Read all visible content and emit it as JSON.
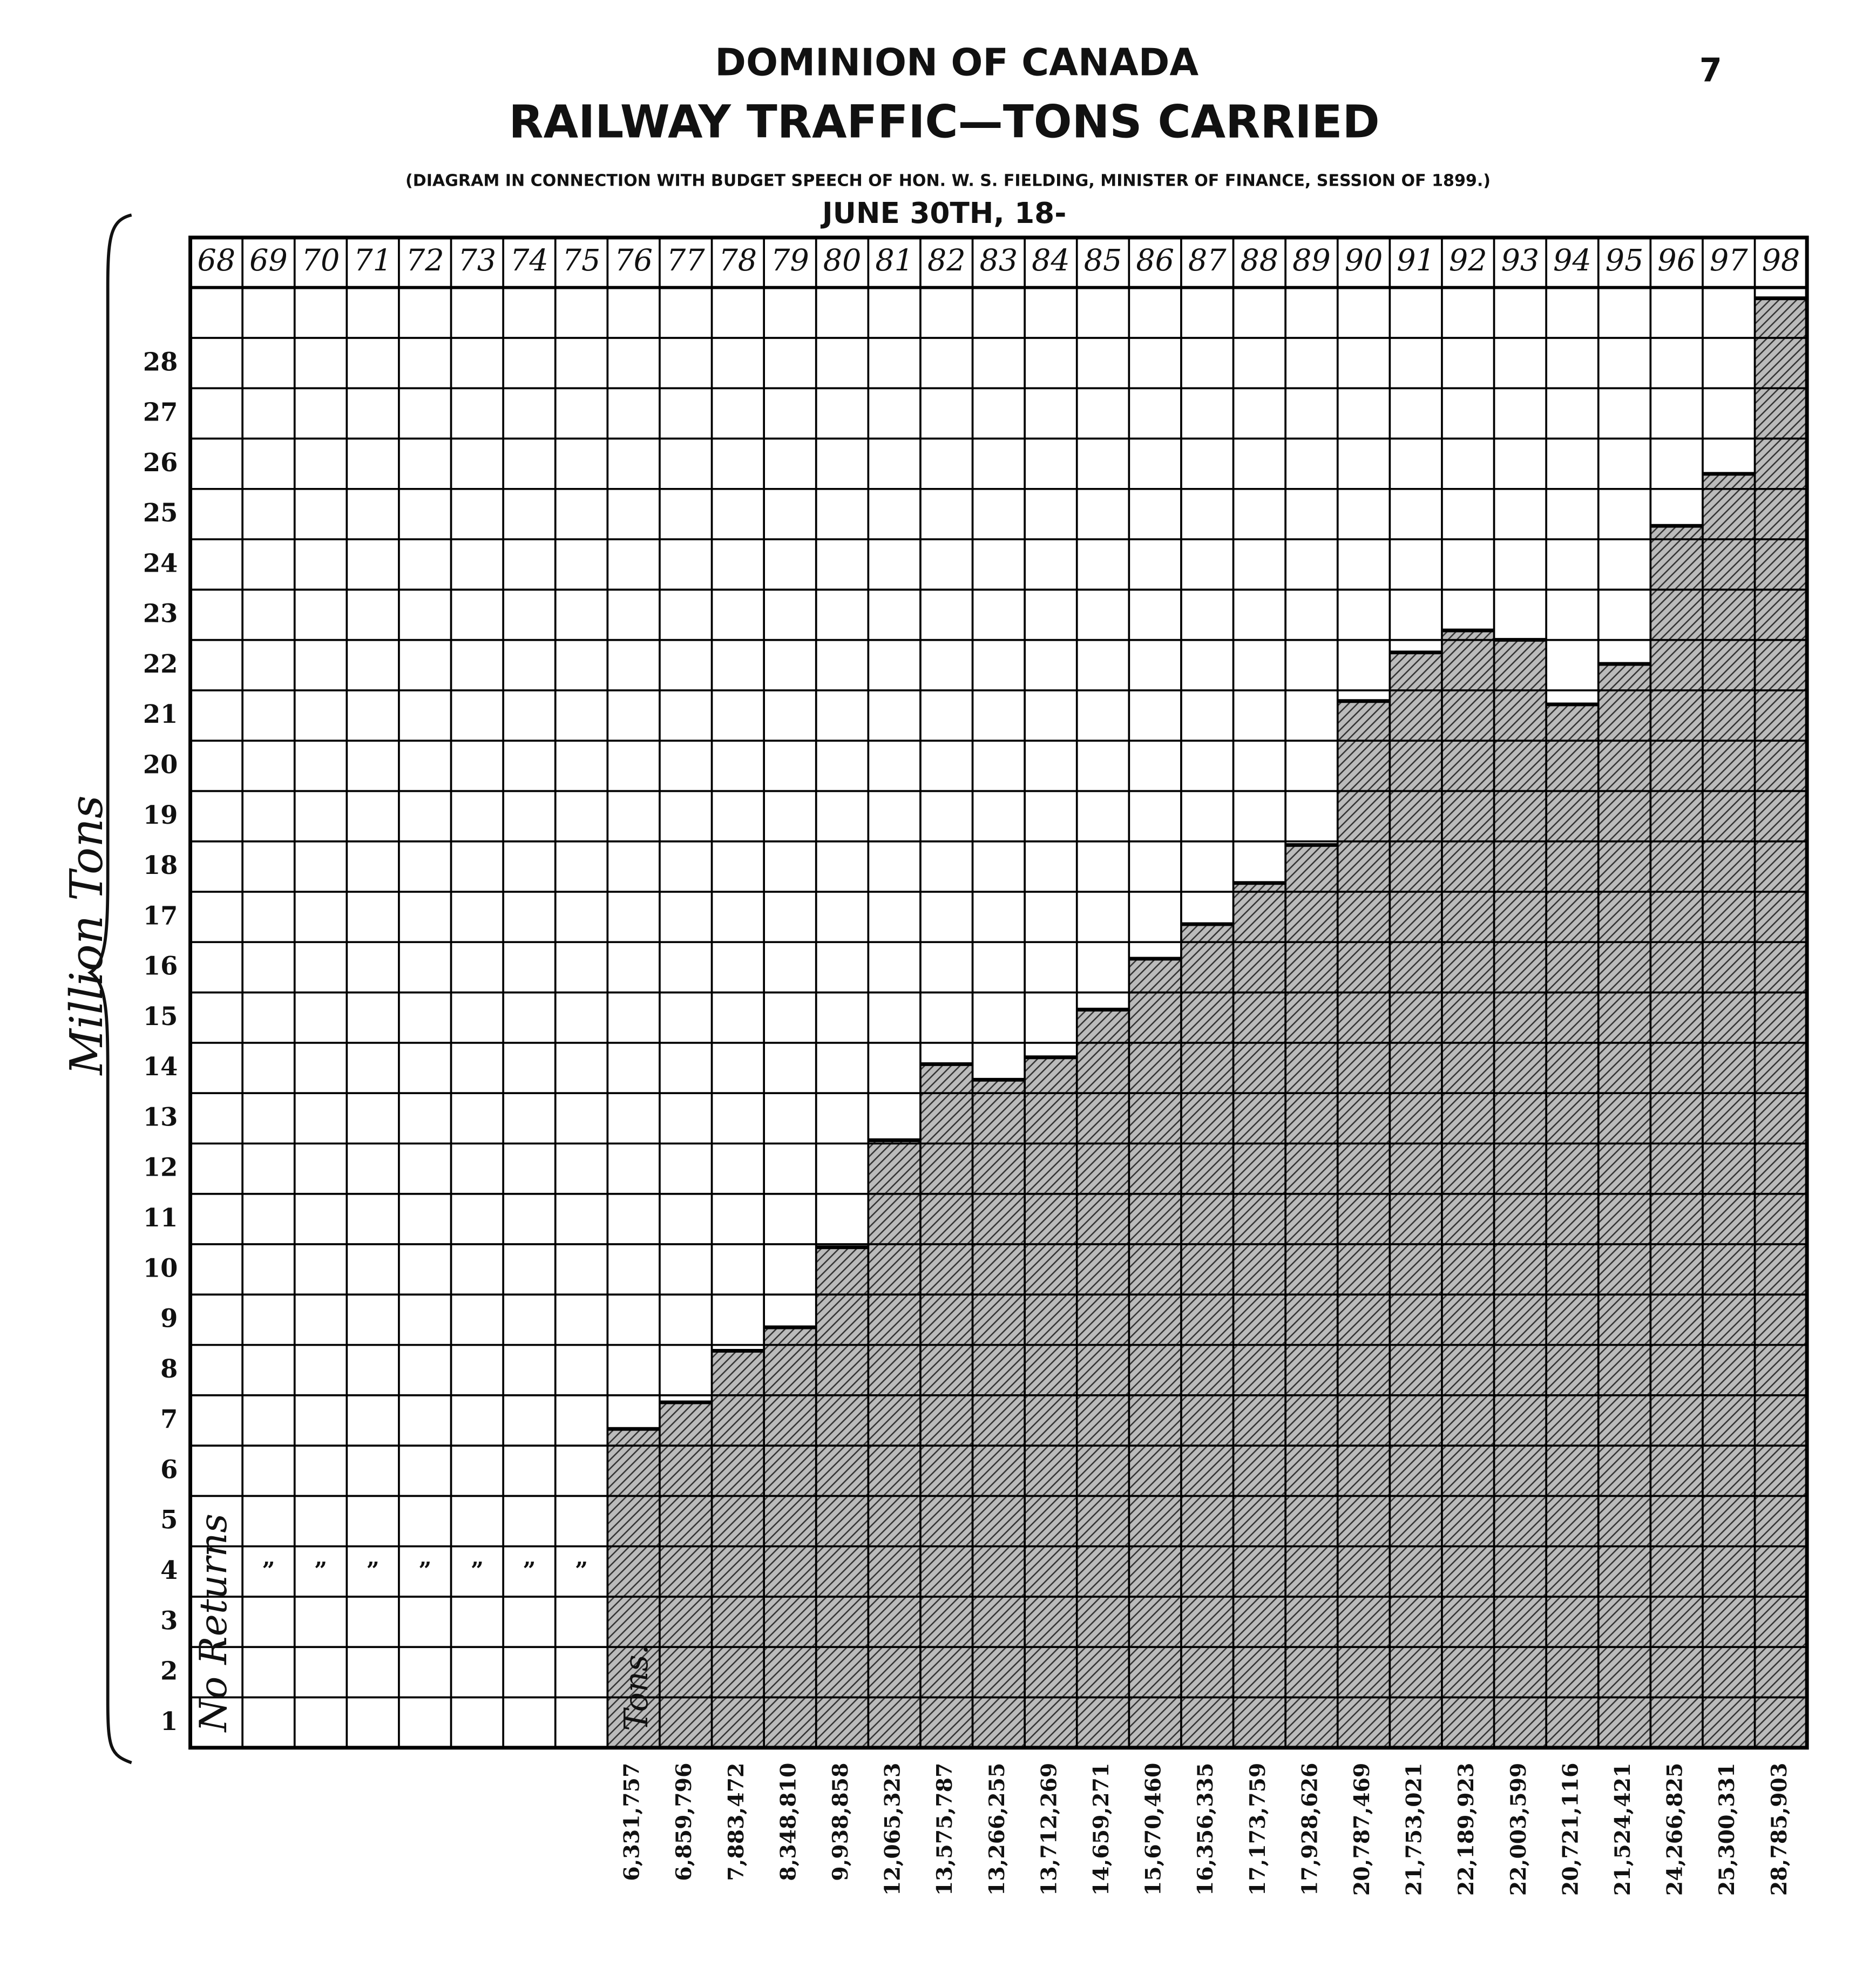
{
  "page_number": "7",
  "chart_data": {
    "type": "bar",
    "title": "DOMINION OF CANADA",
    "subtitle": "RAILWAY TRAFFIC—TONS CARRIED",
    "note": "(DIAGRAM IN CONNECTION WITH BUDGET SPEECH OF HON. W. S. FIELDING, MINISTER OF FINANCE, SESSION OF 1899.)",
    "x_label": "JUNE 30TH, 18-",
    "y_label": "Million Tons",
    "categories": [
      "68",
      "69",
      "70",
      "71",
      "72",
      "73",
      "74",
      "75",
      "76",
      "77",
      "78",
      "79",
      "80",
      "81",
      "82",
      "83",
      "84",
      "85",
      "86",
      "87",
      "88",
      "89",
      "90",
      "91",
      "92",
      "93",
      "94",
      "95",
      "96",
      "97",
      "98"
    ],
    "values": [
      null,
      null,
      null,
      null,
      null,
      null,
      null,
      null,
      6.331757,
      6.859796,
      7.883472,
      8.34881,
      9.938858,
      12.065323,
      13.575787,
      13.266255,
      13.712269,
      14.659271,
      15.67046,
      16.356335,
      17.173759,
      17.928626,
      20.787469,
      21.753021,
      22.189923,
      22.003599,
      20.721116,
      21.524421,
      24.266825,
      25.300331,
      28.785903
    ],
    "value_labels": [
      null,
      null,
      null,
      null,
      null,
      null,
      null,
      null,
      "6,331,757",
      "6,859,796",
      "7,883,472",
      "8,348,810",
      "9,938,858",
      "12,065,323",
      "13,575,787",
      "13,266,255",
      "13,712,269",
      "14,659,271",
      "15,670,460",
      "16,356,335",
      "17,173,759",
      "17,928,626",
      "20,787,469",
      "21,753,021",
      "22,189,923",
      "22,003,599",
      "20,721,116",
      "21,524,421",
      "24,266,825",
      "25,300,331",
      "28,785,903"
    ],
    "no_returns_label": "No Returns",
    "ditto_mark": "”",
    "value_unit_label": "Tons.",
    "ylim": [
      0,
      29
    ],
    "yticks": [
      1,
      2,
      3,
      4,
      5,
      6,
      7,
      8,
      9,
      10,
      11,
      12,
      13,
      14,
      15,
      16,
      17,
      18,
      19,
      20,
      21,
      22,
      23,
      24,
      25,
      26,
      27,
      28
    ],
    "grid": true,
    "color": "#444"
  }
}
